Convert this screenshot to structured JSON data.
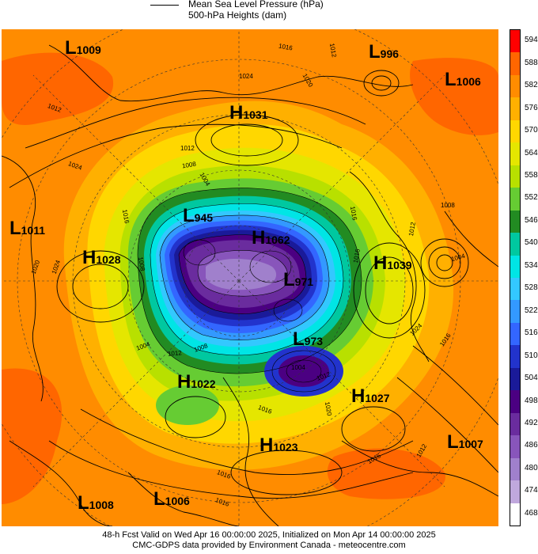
{
  "legend": {
    "line1": "Mean Sea Level Pressure (hPa)",
    "line2": "500-hPa Heights (dam)"
  },
  "colorbar": {
    "levels": [
      "594",
      "588",
      "582",
      "576",
      "570",
      "564",
      "558",
      "552",
      "546",
      "540",
      "534",
      "528",
      "522",
      "516",
      "510",
      "504",
      "498",
      "492",
      "486",
      "480",
      "474",
      "468"
    ],
    "colors": [
      "#ff0000",
      "#ff6600",
      "#ff8c00",
      "#ffb000",
      "#ffd700",
      "#e5e600",
      "#b8e000",
      "#66cc33",
      "#228b22",
      "#00c8a0",
      "#00e5e5",
      "#33c8ff",
      "#3399ff",
      "#3366ff",
      "#2233cc",
      "#1a1a99",
      "#4b0082",
      "#6a2c9e",
      "#8855bb",
      "#a080cc",
      "#c0a8dd",
      "#ffffff"
    ]
  },
  "systems": [
    {
      "type": "L",
      "value": "1009"
    },
    {
      "type": "L",
      "value": "996"
    },
    {
      "type": "L",
      "value": "1006"
    },
    {
      "type": "H",
      "value": "1031"
    },
    {
      "type": "L",
      "value": "1011"
    },
    {
      "type": "H",
      "value": "1028"
    },
    {
      "type": "L",
      "value": "945"
    },
    {
      "type": "H",
      "value": "1062"
    },
    {
      "type": "L",
      "value": "971"
    },
    {
      "type": "H",
      "value": "1039"
    },
    {
      "type": "L",
      "value": "973"
    },
    {
      "type": "H",
      "value": "1022"
    },
    {
      "type": "H",
      "value": "1027"
    },
    {
      "type": "H",
      "value": "1023"
    },
    {
      "type": "L",
      "value": "1007"
    },
    {
      "type": "L",
      "value": "1008"
    },
    {
      "type": "L",
      "value": "1006"
    }
  ],
  "isobar_labels": [
    "1016",
    "1012",
    "1024",
    "1020",
    "1012",
    "1008",
    "1012",
    "1016",
    "1004",
    "1008",
    "1016",
    "1020",
    "1024",
    "1008",
    "1004",
    "1012",
    "1016",
    "1024",
    "1016",
    "1012",
    "1004",
    "1008",
    "1004",
    "1012",
    "1016",
    "1016",
    "1020",
    "1016",
    "1012",
    "1016",
    "1024"
  ],
  "footer": {
    "line1": "48-h Fcst Valid on Wed Apr 16 00:00:00 2025, Initialized on Mon Apr 14 00:00:00 2025",
    "line2": "CMC-GDPS data provided by Environment Canada - meteocentre.com"
  }
}
